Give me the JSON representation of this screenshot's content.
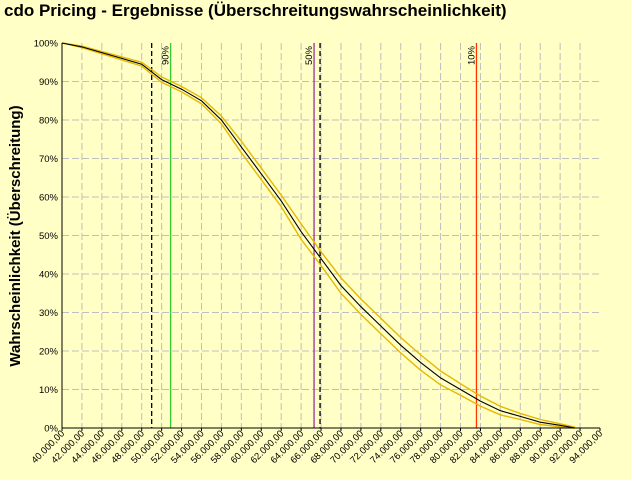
{
  "window": {
    "title": "cdo Pricing - Ergebnisse (Überschreitungswahrscheinlichkeit)"
  },
  "chart_data": {
    "type": "line",
    "title": "cdo Pricing - Ergebnisse (Überschreitungswahrscheinlichkeit)",
    "xlabel": "",
    "ylabel": "Wahrscheinlichkeit (Überschreitung)",
    "xlim": [
      40000,
      94000
    ],
    "ylim": [
      0,
      1
    ],
    "grid": true,
    "x_ticks": [
      40000,
      42000,
      44000,
      46000,
      48000,
      50000,
      52000,
      54000,
      56000,
      58000,
      60000,
      62000,
      64000,
      66000,
      68000,
      70000,
      72000,
      74000,
      76000,
      78000,
      80000,
      82000,
      84000,
      86000,
      88000,
      90000,
      92000,
      94000
    ],
    "x_tick_labels": [
      "40.000,00",
      "42.000,00",
      "44.000,00",
      "46.000,00",
      "48.000,00",
      "50.000,00",
      "52.000,00",
      "54.000,00",
      "56.000,00",
      "58.000,00",
      "60.000,00",
      "62.000,00",
      "64.000,00",
      "66.000,00",
      "68.000,00",
      "70.000,00",
      "72.000,00",
      "74.000,00",
      "76.000,00",
      "78.000,00",
      "80.000,00",
      "82.000,00",
      "84.000,00",
      "86.000,00",
      "88.000,00",
      "90.000,00",
      "92.000,00",
      "94.000,00"
    ],
    "y_ticks": [
      0,
      0.1,
      0.2,
      0.3,
      0.4,
      0.5,
      0.6,
      0.7,
      0.8,
      0.9,
      1.0
    ],
    "y_tick_labels": [
      "0%",
      "10%",
      "20%",
      "30%",
      "40%",
      "50%",
      "60%",
      "70%",
      "80%",
      "90%",
      "100%"
    ],
    "series": [
      {
        "color": "#000000",
        "x": [
          40000,
          42000,
          44000,
          46000,
          48000,
          50000,
          52000,
          54000,
          56000,
          58000,
          60000,
          62000,
          64000,
          66000,
          68000,
          70000,
          72000,
          74000,
          76000,
          78000,
          80000,
          82000,
          84000,
          86000,
          88000,
          90000,
          91500
        ],
        "y": [
          1.0,
          0.99,
          0.975,
          0.96,
          0.945,
          0.905,
          0.88,
          0.85,
          0.8,
          0.73,
          0.66,
          0.59,
          0.51,
          0.44,
          0.37,
          0.315,
          0.265,
          0.215,
          0.17,
          0.13,
          0.1,
          0.07,
          0.045,
          0.03,
          0.015,
          0.007,
          0.0
        ]
      }
    ],
    "confidence_band": {
      "color": "#e6b800",
      "upper": [
        1.0,
        0.992,
        0.978,
        0.964,
        0.95,
        0.912,
        0.887,
        0.858,
        0.81,
        0.745,
        0.675,
        0.605,
        0.53,
        0.458,
        0.39,
        0.335,
        0.285,
        0.235,
        0.19,
        0.148,
        0.115,
        0.083,
        0.056,
        0.038,
        0.022,
        0.011,
        0.002
      ],
      "lower": [
        1.0,
        0.988,
        0.972,
        0.956,
        0.94,
        0.898,
        0.873,
        0.842,
        0.79,
        0.715,
        0.645,
        0.575,
        0.49,
        0.422,
        0.35,
        0.295,
        0.245,
        0.195,
        0.15,
        0.112,
        0.085,
        0.057,
        0.034,
        0.022,
        0.009,
        0.003,
        0.0
      ]
    },
    "markers": [
      {
        "x": 49000,
        "style": "dashed",
        "color": "#000000",
        "label": ""
      },
      {
        "x": 50900,
        "style": "solid",
        "color": "#33cc33",
        "label": "90%"
      },
      {
        "x": 65300,
        "style": "solid",
        "color": "#993399",
        "label": "50%"
      },
      {
        "x": 65900,
        "style": "dashed",
        "color": "#000000",
        "label": ""
      },
      {
        "x": 81600,
        "style": "solid",
        "color": "#ff3300",
        "label": "10%"
      }
    ],
    "colors": {
      "background": "#ffffc6",
      "grid": "#bfbfbf"
    }
  }
}
